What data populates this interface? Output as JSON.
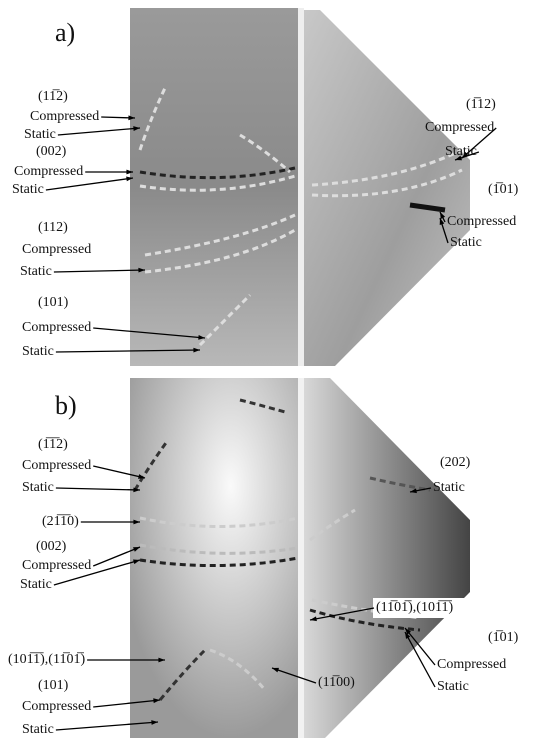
{
  "panels": [
    {
      "label": "a)",
      "labels": [
        "(11̅2)",
        "Compressed",
        "Static",
        "(002)",
        "Compressed",
        "Static",
        "(112)",
        "Compressed",
        "Static",
        "(101)",
        "Compressed",
        "Static",
        "(1̅12)",
        "Compressed",
        "Static",
        "(1̅01)",
        "Compressed",
        "Static"
      ]
    },
    {
      "label": "b)",
      "labels": [
        "(1̅1̅2)",
        "Compressed",
        "Static",
        "(21̅1̅0)",
        "(002)",
        "Compressed",
        "Static",
        "(101̅1̅),(11̅01̅)",
        "(101)",
        "Compressed",
        "Static",
        "(202)",
        "Static",
        "(11̅01̅),(101̅1̅)",
        "(1̅01)",
        "Compressed",
        "Static",
        "(11̅00)"
      ]
    }
  ]
}
